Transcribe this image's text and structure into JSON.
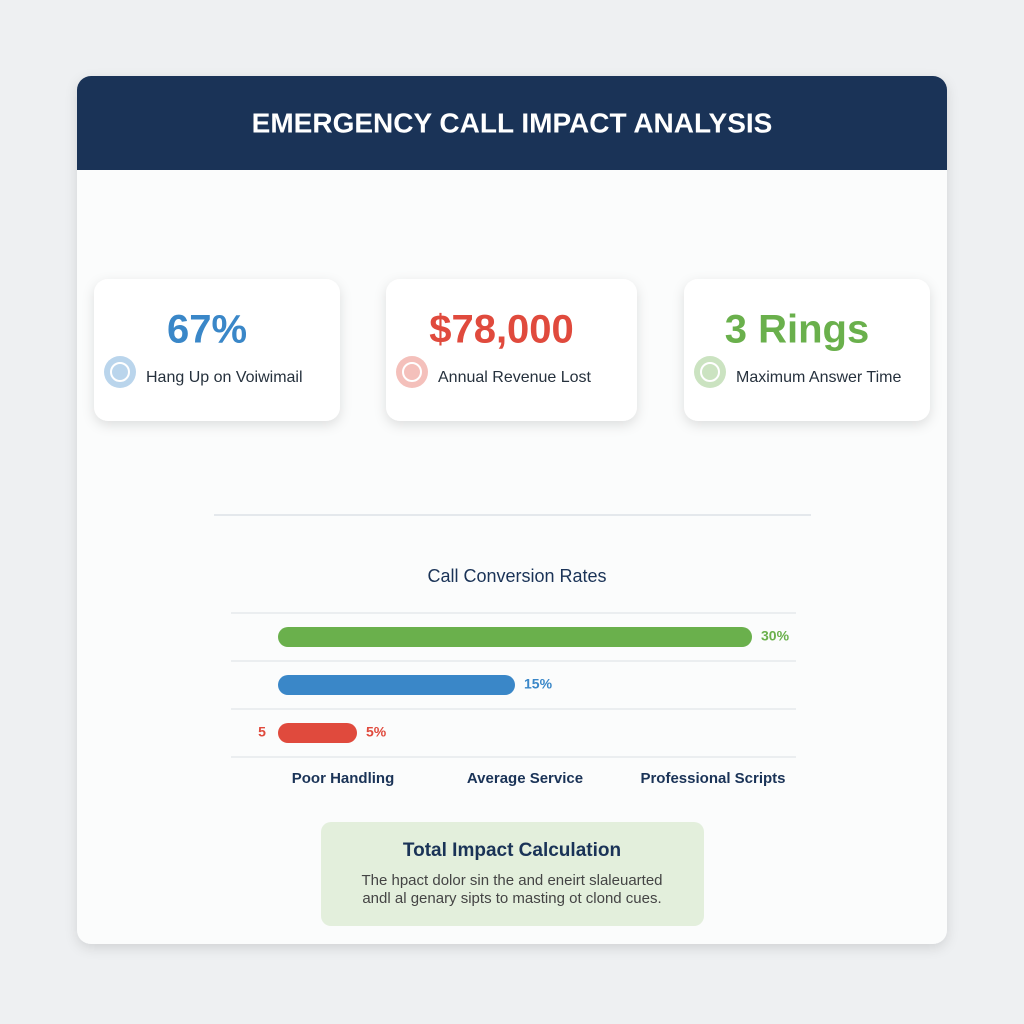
{
  "header": {
    "title": "EMERGENCY CALL IMPACT ANALYSIS"
  },
  "stats": [
    {
      "value": "67%",
      "label": "Hang Up on Voiwimail",
      "color": "#3a87c8"
    },
    {
      "value": "$78,000",
      "label": "Annual Revenue Lost",
      "color": "#e04a3d"
    },
    {
      "value": "3 Rings",
      "label": "Maximum Answer Time",
      "color": "#6ab04c"
    }
  ],
  "chart_data": {
    "type": "bar",
    "orientation": "horizontal",
    "title": "Call Conversion Rates",
    "categories": [
      "Poor Handling",
      "Average Service",
      "Professional Scripts"
    ],
    "values": [
      5,
      15,
      30
    ],
    "value_labels": [
      "5%",
      "15%",
      "30%"
    ],
    "colors": [
      "#e04a3d",
      "#3a87c8",
      "#6ab04c"
    ],
    "annotation": "5",
    "grid": true
  },
  "impact": {
    "title": "Total Impact Calculation",
    "lines": [
      "The hpact dolor sin the and eneirt slaleuarted",
      "andl al genary sipts to masting ot clond cues."
    ]
  }
}
